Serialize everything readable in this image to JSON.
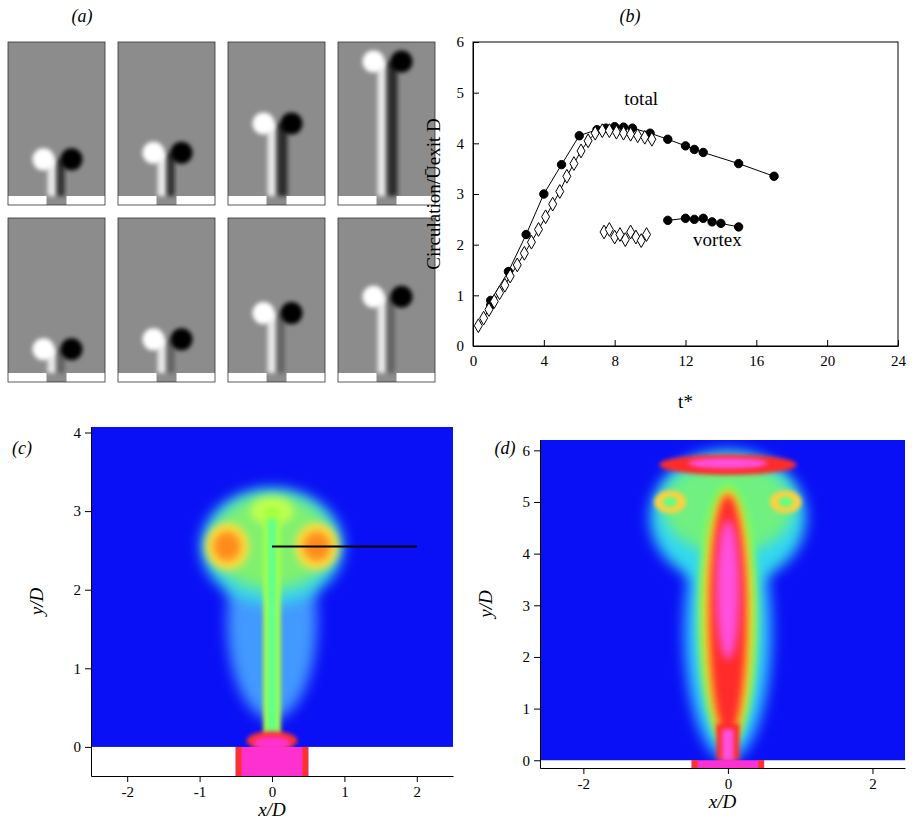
{
  "chart_data": [
    {
      "type": "image",
      "title": "(a)"
    },
    {
      "type": "scatter",
      "title": "(b)",
      "xlabel": "t*",
      "ylabel": "Circulation/Ūexit D",
      "xlim": [
        0,
        24
      ],
      "ylim": [
        0,
        6
      ],
      "xticks": [
        0,
        4,
        8,
        12,
        16,
        20,
        24
      ],
      "yticks": [
        0,
        1,
        2,
        3,
        4,
        5,
        6
      ],
      "series": [
        {
          "color": "#000000",
          "marker": "circle",
          "line_style": "solid",
          "x": [
            1,
            1,
            2,
            3,
            4,
            5,
            6,
            7,
            7.5,
            8,
            8.5,
            9,
            10,
            11,
            12,
            12.5,
            13,
            15,
            17
          ],
          "values": [
            0.8,
            0.9,
            1.47,
            2.2,
            3.0,
            3.58,
            4.15,
            4.27,
            4.3,
            4.33,
            4.32,
            4.3,
            4.2,
            4.08,
            3.95,
            3.88,
            3.82,
            3.6,
            3.35
          ]
        },
        {
          "color": "#000000",
          "marker": "diamond-open",
          "line_style": "solid",
          "x": [
            0.3,
            0.6,
            0.9,
            1.2,
            1.5,
            1.8,
            2.1,
            2.5,
            2.9,
            3.3,
            3.7,
            4.1,
            4.5,
            4.9,
            5.3,
            5.7,
            6.1,
            6.5,
            6.9,
            7.3,
            7.7,
            8.1,
            8.5,
            8.9,
            9.3,
            9.7,
            10.1
          ],
          "values": [
            0.4,
            0.55,
            0.72,
            0.88,
            1.05,
            1.2,
            1.38,
            1.6,
            1.83,
            2.05,
            2.3,
            2.55,
            2.8,
            3.05,
            3.35,
            3.6,
            3.85,
            4.05,
            4.2,
            4.25,
            4.25,
            4.22,
            4.2,
            4.18,
            4.15,
            4.12,
            4.08
          ]
        },
        {
          "color": "#000000",
          "marker": "diamond-open",
          "line_style": "none",
          "x": [
            7.4,
            7.7,
            8.0,
            8.3,
            8.6,
            8.9,
            9.2,
            9.5,
            9.8
          ],
          "values": [
            2.25,
            2.3,
            2.15,
            2.2,
            2.1,
            2.25,
            2.15,
            2.08,
            2.2
          ]
        },
        {
          "color": "#000000",
          "marker": "circle",
          "line_style": "solid",
          "x": [
            11,
            12,
            12.5,
            13,
            13.5,
            14,
            15
          ],
          "values": [
            2.48,
            2.52,
            2.5,
            2.52,
            2.45,
            2.42,
            2.35
          ]
        }
      ],
      "annotations": [
        {
          "text": "total",
          "x": 9.5,
          "y": 4.85
        },
        {
          "text": "vortex",
          "x": 13.8,
          "y": 2.05
        }
      ]
    },
    {
      "type": "image",
      "title": "(c)",
      "xlabel": "x/D",
      "ylabel": "y/D",
      "xlim": [
        -2.5,
        2.5
      ],
      "ylim": [
        -0.37,
        4.07
      ],
      "xticks": [
        -2,
        -1,
        0,
        1,
        2
      ],
      "yticks": [
        0,
        1,
        2,
        3,
        4
      ]
    },
    {
      "type": "image",
      "title": "(d)",
      "xlabel": "x/D",
      "ylabel": "y/D",
      "xlim": [
        -2.6,
        2.45
      ],
      "ylim": [
        -0.15,
        6.2
      ],
      "xticks": [
        -2,
        0,
        2
      ],
      "yticks": [
        0,
        1,
        2,
        3,
        4,
        5,
        6
      ]
    }
  ]
}
